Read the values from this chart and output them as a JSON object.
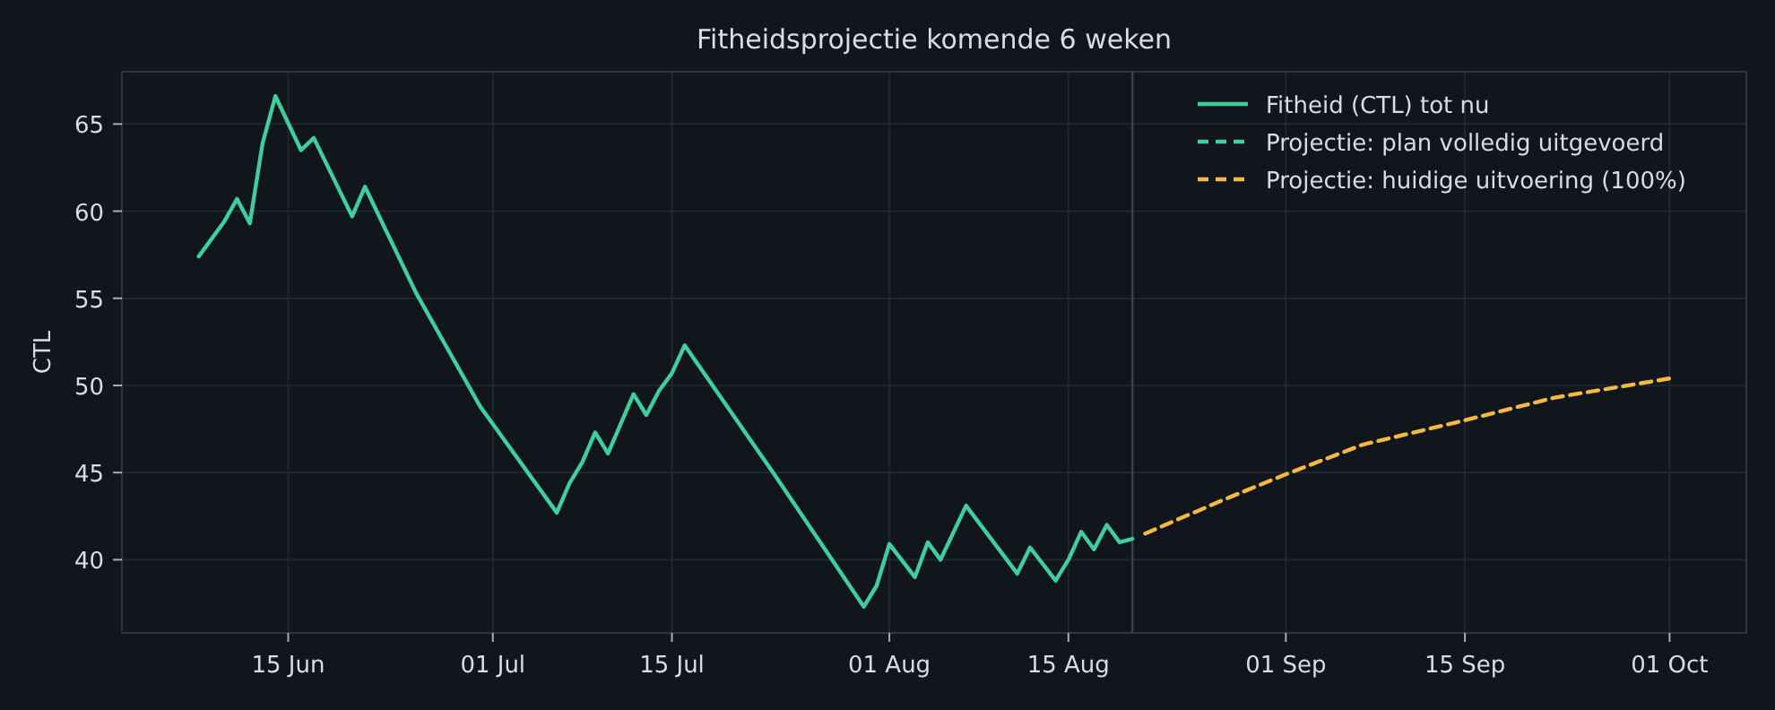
{
  "chart_data": {
    "type": "line",
    "title": "Fitheidsprojectie komende 6 weken",
    "ylabel": "CTL",
    "series": [
      {
        "name": "Fitheid (CTL) tot nu",
        "color": "#3ecf9c",
        "line_style": "solid",
        "x": [
          "--06-08",
          "--06-10",
          "--06-11",
          "--06-12",
          "--06-13",
          "--06-14",
          "--06-16",
          "--06-17",
          "--06-20",
          "--06-21",
          "--06-25",
          "--06-30",
          "--07-06",
          "--07-07",
          "--07-08",
          "--07-09",
          "--07-10",
          "--07-12",
          "--07-13",
          "--07-14",
          "--07-15",
          "--07-16",
          "--07-23",
          "--07-30",
          "--07-31",
          "--08-01",
          "--08-03",
          "--08-04",
          "--08-05",
          "--08-07",
          "--08-11",
          "--08-12",
          "--08-14",
          "--08-15",
          "--08-16",
          "--08-17",
          "--08-18",
          "--08-19",
          "--08-20"
        ],
        "values": [
          57.4,
          59.4,
          60.7,
          59.3,
          63.9,
          66.6,
          63.5,
          64.2,
          59.7,
          61.4,
          55.3,
          48.8,
          42.7,
          44.4,
          45.6,
          47.3,
          46.1,
          49.5,
          48.3,
          49.7,
          50.7,
          52.3,
          44.9,
          37.3,
          38.5,
          40.9,
          39.0,
          41.0,
          40.0,
          43.1,
          39.2,
          40.7,
          38.8,
          40.0,
          41.6,
          40.6,
          42.0,
          41.0,
          41.2
        ]
      },
      {
        "name": "Projectie: plan volledig uitgevoerd",
        "color": "#3ecf9c",
        "line_style": "dashed"
      },
      {
        "name": "Projectie: huidige uitvoering (100%)",
        "color": "#f5b942",
        "line_style": "dashed",
        "x": [
          "--08-21",
          "--08-27",
          "--09-01",
          "--09-07",
          "--09-15",
          "--09-22",
          "--10-01"
        ],
        "values": [
          41.5,
          43.4,
          44.9,
          46.6,
          48.0,
          49.3,
          50.4
        ]
      }
    ],
    "xlim": [
      "--06-02",
      "--10-07"
    ],
    "xticks": [
      {
        "value": "--06-15",
        "label": "15 Jun"
      },
      {
        "value": "--07-01",
        "label": "01 Jul"
      },
      {
        "value": "--07-15",
        "label": "15 Jul"
      },
      {
        "value": "--08-01",
        "label": "01 Aug"
      },
      {
        "value": "--08-15",
        "label": "15 Aug"
      },
      {
        "value": "--09-01",
        "label": "01 Sep"
      },
      {
        "value": "--09-15",
        "label": "15 Sep"
      },
      {
        "value": "--10-01",
        "label": "01 Oct"
      }
    ],
    "ylim": [
      35.8,
      68
    ],
    "yticks": [
      40,
      45,
      50,
      55,
      60,
      65
    ],
    "ref_lines": [
      {
        "axis": "x",
        "value": "--08-20",
        "label": null,
        "color": "#3a4250"
      }
    ],
    "grid": true,
    "legend": "top right",
    "marker": "none"
  }
}
